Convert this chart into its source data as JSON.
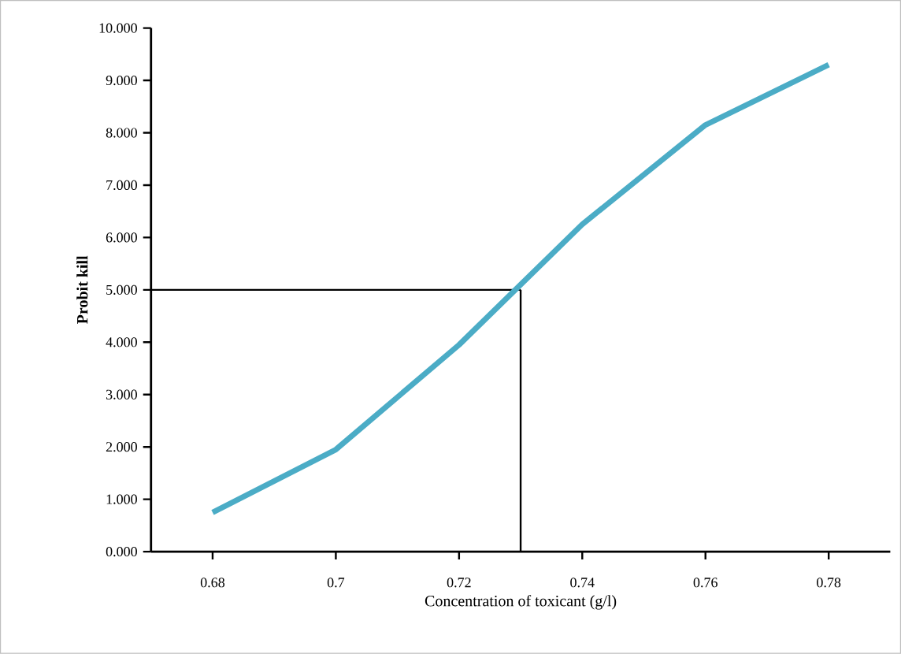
{
  "chart_data": {
    "type": "line",
    "xlabel": "Concentration of toxicant (g/l)",
    "ylabel": "Probit kill",
    "x": [
      0.68,
      0.7,
      0.72,
      0.74,
      0.76,
      0.78
    ],
    "series": [
      {
        "color": "#4bacc6",
        "values": [
          0.75,
          1.95,
          3.95,
          6.25,
          8.15,
          9.3
        ]
      }
    ],
    "xlim": [
      0.67,
      0.79
    ],
    "xticks": [
      0.68,
      {
        "value": 0.7,
        "label": "0.7"
      },
      0.72,
      0.74,
      0.76,
      0.78
    ],
    "ylim": [
      0,
      10
    ],
    "yticks": [
      {
        "value": 0,
        "label": "0.000"
      },
      {
        "value": 1,
        "label": "1.000"
      },
      {
        "value": 2,
        "label": "2.000"
      },
      {
        "value": 3,
        "label": "3.000"
      },
      {
        "value": 4,
        "label": "4.000"
      },
      {
        "value": 5,
        "label": "5.000"
      },
      {
        "value": 6,
        "label": "6.000"
      },
      {
        "value": 7,
        "label": "7.000"
      },
      {
        "value": 8,
        "label": "8.000"
      },
      {
        "value": 9,
        "label": "9.000"
      },
      {
        "value": 10,
        "label": "10.000"
      }
    ],
    "ref_lines": [
      {
        "axis": "y",
        "value": 5,
        "color": "#000000"
      },
      {
        "axis": "x",
        "value": 0.73,
        "color": "#000000"
      }
    ],
    "marker": "none",
    "line_style": "solid"
  }
}
